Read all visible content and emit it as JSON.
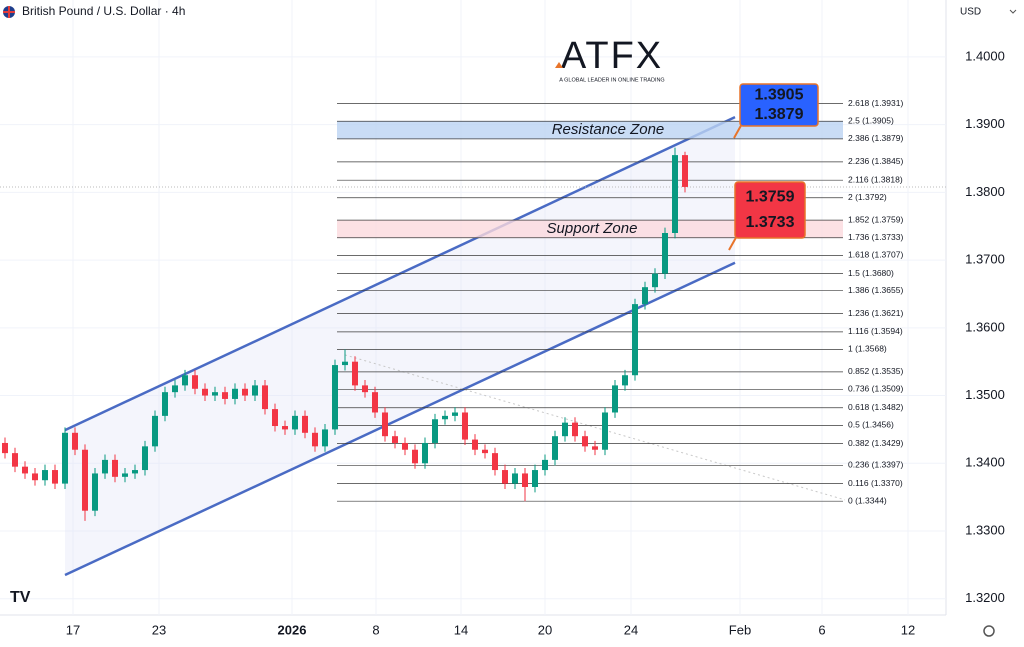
{
  "chart_data": {
    "type": "candlestick",
    "title": "British Pound / U.S. Dollar · 4h",
    "currency": "USD",
    "logo": {
      "name": "ATFX",
      "tagline": "A GLOBAL LEADER IN ONLINE TRADING"
    },
    "up_color": "#089981",
    "down_color": "#f23645",
    "open": [
      1.343,
      1.3415,
      1.3395,
      1.3385,
      1.3375,
      1.339,
      1.337,
      1.3445,
      1.342,
      1.333,
      1.3385,
      1.3405,
      1.338,
      1.3385,
      1.339,
      1.3425,
      1.347,
      1.3505,
      1.3515,
      1.353,
      1.351,
      1.35,
      1.3505,
      1.3495,
      1.351,
      1.35,
      1.3515,
      1.348,
      1.3455,
      1.345,
      1.347,
      1.3445,
      1.3425,
      1.345,
      1.3545,
      1.355,
      1.3515,
      1.3505,
      1.3475,
      1.344,
      1.343,
      1.342,
      1.34,
      1.343,
      1.3465,
      1.347,
      1.3475,
      1.3435,
      1.342,
      1.3415,
      1.339,
      1.337,
      1.3385,
      1.3365,
      1.339,
      1.3405,
      1.344,
      1.346,
      1.344,
      1.3425,
      1.342,
      1.3475,
      1.3515,
      1.353,
      1.3635,
      1.366,
      1.368,
      1.374,
      1.3855
    ],
    "high": [
      1.3438,
      1.3423,
      1.3403,
      1.3393,
      1.3398,
      1.3398,
      1.3453,
      1.3453,
      1.3428,
      1.3393,
      1.3413,
      1.3413,
      1.3393,
      1.3398,
      1.3433,
      1.3478,
      1.3513,
      1.3523,
      1.3538,
      1.3538,
      1.3518,
      1.3513,
      1.3513,
      1.3518,
      1.3518,
      1.3523,
      1.3523,
      1.3488,
      1.3463,
      1.3478,
      1.3478,
      1.3453,
      1.3458,
      1.3553,
      1.3568,
      1.3558,
      1.3523,
      1.3513,
      1.3483,
      1.3448,
      1.3438,
      1.3428,
      1.3438,
      1.3473,
      1.3478,
      1.3483,
      1.3483,
      1.3443,
      1.3428,
      1.3423,
      1.3398,
      1.3393,
      1.3393,
      1.3398,
      1.3413,
      1.3448,
      1.3468,
      1.3468,
      1.3448,
      1.3433,
      1.3483,
      1.3523,
      1.3538,
      1.3643,
      1.3668,
      1.3688,
      1.3748,
      1.3866,
      1.386
    ],
    "low": [
      1.3407,
      1.3387,
      1.3377,
      1.3367,
      1.3367,
      1.3362,
      1.3362,
      1.3412,
      1.3315,
      1.3322,
      1.3377,
      1.3372,
      1.3372,
      1.3377,
      1.3382,
      1.3417,
      1.3462,
      1.3497,
      1.3507,
      1.3502,
      1.3492,
      1.3492,
      1.3487,
      1.3487,
      1.3492,
      1.3492,
      1.3472,
      1.3447,
      1.3442,
      1.3442,
      1.3437,
      1.3417,
      1.3417,
      1.3442,
      1.3537,
      1.3507,
      1.3497,
      1.3467,
      1.3432,
      1.3422,
      1.3412,
      1.3392,
      1.3392,
      1.3422,
      1.3457,
      1.3462,
      1.3427,
      1.3412,
      1.3407,
      1.3382,
      1.3362,
      1.3362,
      1.3344,
      1.3357,
      1.3382,
      1.3397,
      1.3432,
      1.3432,
      1.3417,
      1.3412,
      1.3412,
      1.3467,
      1.3507,
      1.3522,
      1.3627,
      1.3652,
      1.3672,
      1.3732,
      1.38
    ],
    "close": [
      1.3415,
      1.3395,
      1.3385,
      1.3375,
      1.339,
      1.337,
      1.3445,
      1.342,
      1.333,
      1.3385,
      1.3405,
      1.338,
      1.3385,
      1.339,
      1.3425,
      1.347,
      1.3505,
      1.3515,
      1.353,
      1.351,
      1.35,
      1.3505,
      1.3495,
      1.351,
      1.35,
      1.3515,
      1.348,
      1.3455,
      1.345,
      1.347,
      1.3445,
      1.3425,
      1.345,
      1.3545,
      1.355,
      1.3515,
      1.3505,
      1.3475,
      1.344,
      1.343,
      1.342,
      1.34,
      1.343,
      1.3465,
      1.347,
      1.3475,
      1.3435,
      1.342,
      1.3415,
      1.339,
      1.337,
      1.3385,
      1.3365,
      1.339,
      1.3405,
      1.344,
      1.346,
      1.344,
      1.3425,
      1.342,
      1.3475,
      1.3515,
      1.353,
      1.3635,
      1.366,
      1.368,
      1.374,
      1.3855,
      1.3808
    ],
    "last_price": 1.3808,
    "xlim": [
      -0.5,
      93.5
    ],
    "xticks": [
      {
        "value": 6.8,
        "label": "17"
      },
      {
        "value": 15.4,
        "label": "23"
      },
      {
        "value": 28.7,
        "label": "2026"
      },
      {
        "value": 37.1,
        "label": "8"
      },
      {
        "value": 45.6,
        "label": "14"
      },
      {
        "value": 54,
        "label": "20"
      },
      {
        "value": 62.6,
        "label": "24"
      },
      {
        "value": 73.5,
        "label": "Feb"
      },
      {
        "value": 81.7,
        "label": "6"
      },
      {
        "value": 90.3,
        "label": "12"
      }
    ],
    "ylim": [
      1.3176,
      1.4084
    ],
    "yticks": [
      {
        "value": 1.32,
        "label": "1.3200"
      },
      {
        "value": 1.33,
        "label": "1.3300"
      },
      {
        "value": 1.34,
        "label": "1.3400"
      },
      {
        "value": 1.35,
        "label": "1.3500"
      },
      {
        "value": 1.36,
        "label": "1.3600"
      },
      {
        "value": 1.37,
        "label": "1.3700"
      },
      {
        "value": 1.38,
        "label": "1.3800"
      },
      {
        "value": 1.39,
        "label": "1.3900"
      },
      {
        "value": 1.4,
        "label": "1.4000"
      }
    ],
    "grid": true,
    "channel": {
      "color": "#4a6bc4",
      "upper": {
        "x": [
          6,
          73
        ],
        "y": [
          1.3449,
          1.3911
        ]
      },
      "lower": {
        "x": [
          6,
          73
        ],
        "y": [
          1.3235,
          1.3696
        ]
      }
    },
    "trend_line": {
      "x": [
        34,
        84
      ],
      "y": [
        1.356,
        1.3346
      ]
    },
    "fib_levels": [
      {
        "label": "2.618 (1.3931)",
        "value": 1.3931
      },
      {
        "label": "2.5 (1.3905)",
        "value": 1.3905
      },
      {
        "label": "2.386 (1.3879)",
        "value": 1.3879
      },
      {
        "label": "2.236 (1.3845)",
        "value": 1.3845
      },
      {
        "label": "2.116 (1.3818)",
        "value": 1.3818
      },
      {
        "label": "2 (1.3792)",
        "value": 1.3792
      },
      {
        "label": "1.852 (1.3759)",
        "value": 1.3759
      },
      {
        "label": "1.736 (1.3733)",
        "value": 1.3733
      },
      {
        "label": "1.618 (1.3707)",
        "value": 1.3707
      },
      {
        "label": "1.5 (1.3680)",
        "value": 1.368
      },
      {
        "label": "1.386 (1.3655)",
        "value": 1.3655
      },
      {
        "label": "1.236 (1.3621)",
        "value": 1.3621
      },
      {
        "label": "1.116 (1.3594)",
        "value": 1.3594
      },
      {
        "label": "1 (1.3568)",
        "value": 1.3568
      },
      {
        "label": "0.852 (1.3535)",
        "value": 1.3535
      },
      {
        "label": "0.736 (1.3509)",
        "value": 1.3509
      },
      {
        "label": "0.618 (1.3482)",
        "value": 1.3482
      },
      {
        "label": "0.5 (1.3456)",
        "value": 1.3456
      },
      {
        "label": "0.382 (1.3429)",
        "value": 1.3429
      },
      {
        "label": "0.236 (1.3397)",
        "value": 1.3397
      },
      {
        "label": "0.116 (1.3370)",
        "value": 1.337
      },
      {
        "label": "0 (1.3344)",
        "value": 1.3344
      }
    ],
    "zones": [
      {
        "name": "Resistance Zone",
        "high": 1.3905,
        "low": 1.3879,
        "color": "#2962ff",
        "fill": "#bcd3f2"
      },
      {
        "name": "Support Zone",
        "high": 1.3759,
        "low": 1.3733,
        "color": "#f23645",
        "fill": "#fbdadd"
      }
    ]
  }
}
